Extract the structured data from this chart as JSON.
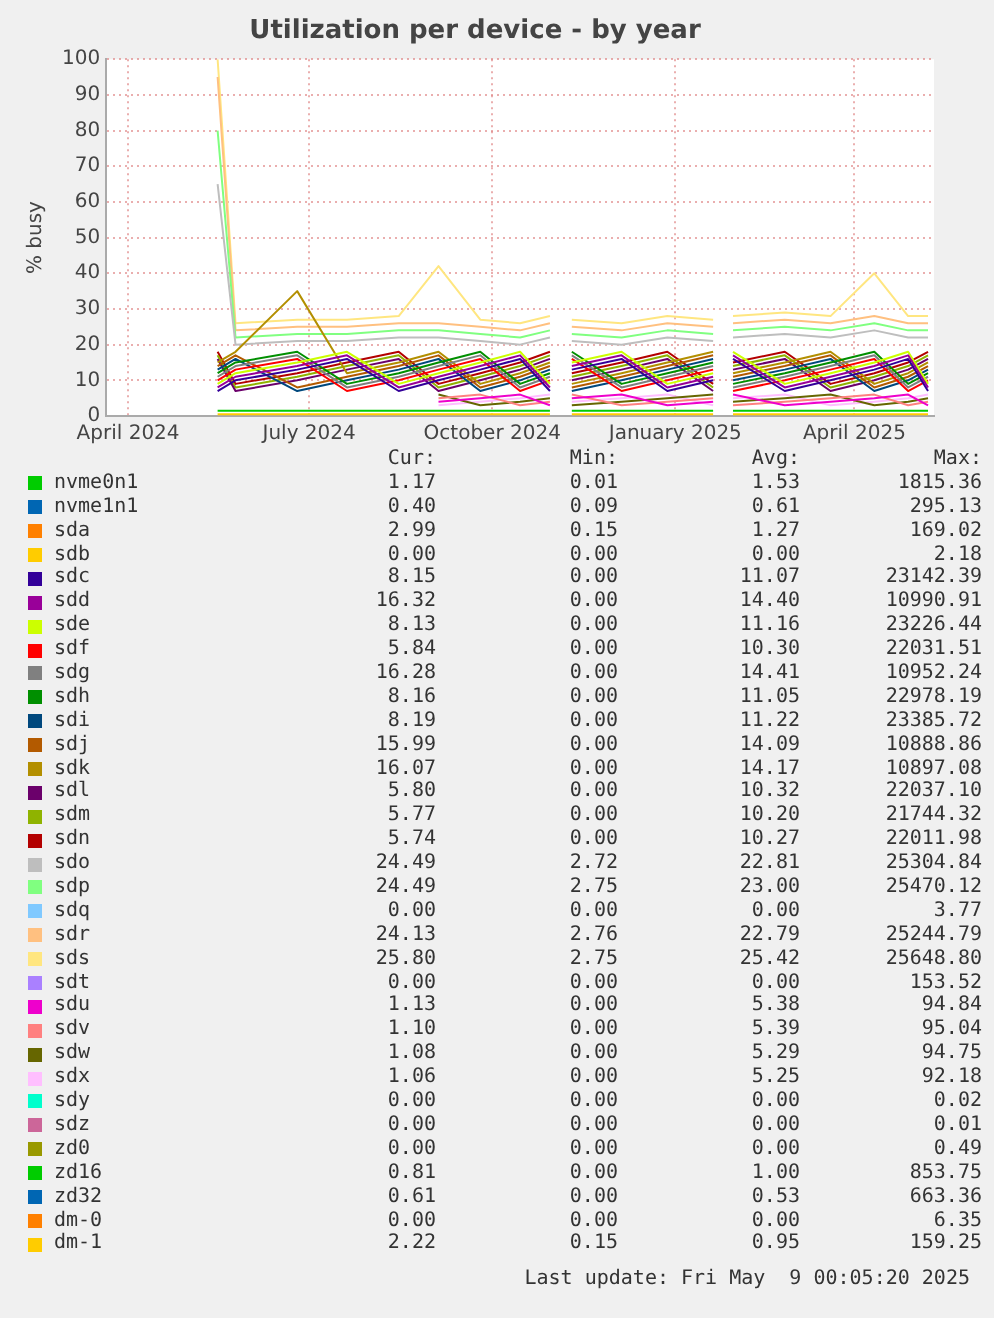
{
  "chart_data": {
    "type": "line",
    "title": "Utilization per device - by year",
    "ylabel": "% busy",
    "x": [
      "2024-05-16",
      "2024-05-25",
      "2024-06-25",
      "2024-07-20",
      "2024-08-15",
      "2024-09-04",
      "2024-09-25",
      "2024-10-15",
      "2024-10-30",
      "2024-11-05",
      "2024-11-10",
      "2024-12-05",
      "2024-12-28",
      "2025-01-20",
      "2025-01-25",
      "2025-01-30",
      "2025-02-25",
      "2025-03-20",
      "2025-04-11",
      "2025-04-28",
      "2025-05-08"
    ],
    "xlim": [
      "2024-03-21",
      "2025-05-11"
    ],
    "xticks": [
      {
        "value": "2024-04-01",
        "label": "April 2024"
      },
      {
        "value": "2024-07-01",
        "label": "July 2024"
      },
      {
        "value": "2024-10-01",
        "label": "October 2024"
      },
      {
        "value": "2025-01-01",
        "label": "January 2025"
      },
      {
        "value": "2025-04-01",
        "label": "April 2025"
      }
    ],
    "ylim": [
      0,
      100
    ],
    "yticks": [
      0,
      10,
      20,
      30,
      40,
      50,
      60,
      70,
      80,
      90,
      100
    ],
    "grid": true,
    "legend": "bottom",
    "marker": "none",
    "line_style": "solid",
    "series": [
      {
        "name": "nvme0n1",
        "color": "#00cc00",
        "values": [
          1.5,
          1.5,
          1.5,
          1.5,
          1.5,
          1.5,
          1.5,
          1.5,
          1.5,
          null,
          1.5,
          1.5,
          1.5,
          1.5,
          null,
          1.5,
          1.5,
          1.5,
          1.5,
          1.5,
          1.5
        ]
      },
      {
        "name": "nvme1n1",
        "color": "#0066b3",
        "values": [
          null,
          null,
          null,
          null,
          null,
          null,
          null,
          null,
          null,
          null,
          null,
          null,
          null,
          null,
          null,
          null,
          null,
          null,
          null,
          null,
          null
        ]
      },
      {
        "name": "sda",
        "color": "#ff8000",
        "values": [
          null,
          null,
          null,
          null,
          null,
          null,
          null,
          null,
          null,
          null,
          null,
          null,
          null,
          null,
          null,
          null,
          null,
          null,
          null,
          null,
          null
        ]
      },
      {
        "name": "sdb",
        "color": "#ffcc00",
        "values": [
          null,
          null,
          null,
          null,
          null,
          null,
          null,
          null,
          null,
          null,
          null,
          null,
          null,
          null,
          null,
          null,
          null,
          null,
          null,
          null,
          null
        ]
      },
      {
        "name": "sdc",
        "color": "#330099",
        "values": [
          7,
          10,
          13,
          16,
          7,
          10,
          13,
          16,
          7,
          null,
          13,
          16,
          7,
          10,
          null,
          16,
          7,
          10,
          13,
          16,
          7
        ]
      },
      {
        "name": "sdd",
        "color": "#990099",
        "values": [
          8,
          11,
          14,
          17,
          8,
          11,
          14,
          17,
          8,
          null,
          14,
          17,
          8,
          11,
          null,
          17,
          8,
          11,
          14,
          17,
          8
        ]
      },
      {
        "name": "sde",
        "color": "#ccff00",
        "values": [
          9,
          12,
          15,
          18,
          9,
          12,
          15,
          18,
          9,
          null,
          15,
          18,
          9,
          12,
          null,
          18,
          9,
          12,
          15,
          18,
          9
        ]
      },
      {
        "name": "sdf",
        "color": "#ff0000",
        "values": [
          10,
          13,
          16,
          7,
          10,
          13,
          16,
          7,
          10,
          null,
          16,
          7,
          10,
          13,
          null,
          7,
          10,
          13,
          16,
          7,
          10
        ]
      },
      {
        "name": "sdg",
        "color": "#808080",
        "values": [
          11,
          14,
          17,
          8,
          11,
          14,
          17,
          8,
          11,
          null,
          17,
          8,
          11,
          14,
          null,
          8,
          11,
          14,
          17,
          8,
          11
        ]
      },
      {
        "name": "sdh",
        "color": "#008f00",
        "values": [
          12,
          15,
          18,
          9,
          12,
          15,
          18,
          9,
          12,
          null,
          18,
          9,
          12,
          15,
          null,
          9,
          12,
          15,
          18,
          9,
          12
        ]
      },
      {
        "name": "sdi",
        "color": "#00487d",
        "values": [
          13,
          16,
          7,
          10,
          13,
          16,
          7,
          10,
          13,
          null,
          7,
          10,
          13,
          16,
          null,
          10,
          13,
          16,
          7,
          10,
          13
        ]
      },
      {
        "name": "sdj",
        "color": "#b35a00",
        "values": [
          14,
          17,
          8,
          11,
          14,
          17,
          8,
          11,
          14,
          null,
          8,
          11,
          14,
          17,
          null,
          11,
          14,
          17,
          8,
          11,
          14
        ]
      },
      {
        "name": "sdk",
        "color": "#b38f00",
        "values": [
          15,
          18,
          35,
          12,
          15,
          18,
          9,
          12,
          15,
          null,
          9,
          12,
          15,
          18,
          null,
          12,
          15,
          18,
          9,
          12,
          15
        ]
      },
      {
        "name": "sdl",
        "color": "#6b006b",
        "values": [
          16,
          7,
          10,
          13,
          16,
          7,
          10,
          13,
          16,
          null,
          10,
          13,
          16,
          7,
          null,
          13,
          16,
          7,
          10,
          13,
          16
        ]
      },
      {
        "name": "sdm",
        "color": "#8fb300",
        "values": [
          17,
          8,
          11,
          14,
          17,
          8,
          11,
          14,
          17,
          null,
          11,
          14,
          17,
          8,
          null,
          14,
          17,
          8,
          11,
          14,
          17
        ]
      },
      {
        "name": "sdn",
        "color": "#b30000",
        "values": [
          18,
          9,
          12,
          15,
          18,
          9,
          12,
          15,
          18,
          null,
          12,
          15,
          18,
          9,
          null,
          15,
          18,
          9,
          12,
          15,
          18
        ]
      },
      {
        "name": "sdo",
        "color": "#bebebe",
        "values": [
          65,
          20,
          21,
          21,
          22,
          22,
          21,
          20,
          22,
          null,
          21,
          20,
          22,
          21,
          null,
          22,
          23,
          22,
          24,
          22,
          22
        ]
      },
      {
        "name": "sdp",
        "color": "#80ff80",
        "values": [
          80,
          22,
          23,
          23,
          24,
          24,
          23,
          22,
          24,
          null,
          23,
          22,
          24,
          23,
          null,
          24,
          25,
          24,
          26,
          24,
          24
        ]
      },
      {
        "name": "sdq",
        "color": "#80c9ff",
        "values": [
          null,
          null,
          null,
          null,
          null,
          null,
          null,
          null,
          null,
          null,
          null,
          null,
          null,
          null,
          null,
          null,
          null,
          null,
          null,
          null,
          null
        ]
      },
      {
        "name": "sdr",
        "color": "#ffc080",
        "values": [
          95,
          24,
          25,
          25,
          26,
          26,
          25,
          24,
          26,
          null,
          25,
          24,
          26,
          25,
          null,
          26,
          27,
          26,
          28,
          26,
          26
        ]
      },
      {
        "name": "sds",
        "color": "#ffe680",
        "values": [
          100,
          26,
          27,
          27,
          28,
          42,
          27,
          26,
          28,
          null,
          27,
          26,
          28,
          27,
          null,
          28,
          29,
          28,
          40,
          28,
          28
        ]
      },
      {
        "name": "sdt",
        "color": "#aa80ff",
        "values": [
          null,
          null,
          null,
          null,
          null,
          null,
          null,
          null,
          null,
          null,
          null,
          null,
          null,
          null,
          null,
          null,
          null,
          null,
          null,
          null,
          null
        ]
      },
      {
        "name": "sdu",
        "color": "#ee00cc",
        "values": [
          null,
          null,
          null,
          null,
          null,
          4,
          5,
          6,
          3,
          null,
          5,
          6,
          3,
          4,
          null,
          6,
          3,
          4,
          5,
          6,
          3
        ]
      },
      {
        "name": "sdv",
        "color": "#ff8080",
        "values": [
          null,
          null,
          null,
          null,
          null,
          5,
          6,
          3,
          4,
          null,
          6,
          3,
          4,
          5,
          null,
          3,
          4,
          5,
          6,
          3,
          4
        ]
      },
      {
        "name": "sdw",
        "color": "#666600",
        "values": [
          null,
          null,
          null,
          null,
          null,
          6,
          3,
          4,
          5,
          null,
          3,
          4,
          5,
          6,
          null,
          4,
          5,
          6,
          3,
          4,
          5
        ]
      },
      {
        "name": "sdx",
        "color": "#ffbfff",
        "values": [
          null,
          null,
          null,
          null,
          null,
          3,
          4,
          5,
          6,
          null,
          4,
          5,
          6,
          3,
          null,
          5,
          6,
          3,
          4,
          5,
          6
        ]
      },
      {
        "name": "sdy",
        "color": "#00ffcc",
        "values": [
          null,
          null,
          null,
          null,
          null,
          null,
          null,
          null,
          null,
          null,
          null,
          null,
          null,
          null,
          null,
          null,
          null,
          null,
          null,
          null,
          null
        ]
      },
      {
        "name": "sdz",
        "color": "#cc6699",
        "values": [
          null,
          null,
          null,
          null,
          null,
          null,
          null,
          null,
          null,
          null,
          null,
          null,
          null,
          null,
          null,
          null,
          null,
          null,
          null,
          null,
          null
        ]
      },
      {
        "name": "zd0",
        "color": "#999900",
        "values": [
          null,
          null,
          null,
          null,
          null,
          null,
          null,
          null,
          null,
          null,
          null,
          null,
          null,
          null,
          null,
          null,
          null,
          null,
          null,
          null,
          null
        ]
      },
      {
        "name": "zd16",
        "color": "#00cc00",
        "values": [
          null,
          null,
          null,
          null,
          null,
          null,
          null,
          null,
          null,
          null,
          null,
          null,
          null,
          null,
          null,
          null,
          null,
          null,
          null,
          null,
          null
        ]
      },
      {
        "name": "zd32",
        "color": "#0066b3",
        "values": [
          null,
          null,
          null,
          null,
          null,
          null,
          null,
          null,
          null,
          null,
          null,
          null,
          null,
          null,
          null,
          null,
          null,
          null,
          null,
          null,
          null
        ]
      },
      {
        "name": "dm-0",
        "color": "#ff8000",
        "values": [
          null,
          null,
          null,
          null,
          null,
          null,
          null,
          null,
          null,
          null,
          null,
          null,
          null,
          null,
          null,
          null,
          null,
          null,
          null,
          null,
          null
        ]
      },
      {
        "name": "dm-1",
        "color": "#ffcc00",
        "values": [
          0.5,
          0.5,
          0.5,
          0.5,
          0.5,
          0.5,
          0.5,
          0.5,
          0.5,
          null,
          0.5,
          0.5,
          0.5,
          0.5,
          null,
          0.5,
          0.5,
          0.5,
          0.5,
          0.5,
          0.5
        ]
      }
    ],
    "annotations": [
      "Cur:",
      "Min:",
      "Avg:",
      "Max:",
      "1.17",
      "0.01",
      "1.53",
      "1815.36",
      "0.40",
      "0.09",
      "0.61",
      "295.13",
      "2.99",
      "0.15",
      "1.27",
      "169.02",
      "0.00",
      "0.00",
      "0.00",
      "2.18",
      "8.15",
      "0.00",
      "11.07",
      "23142.39",
      "16.32",
      "0.00",
      "14.40",
      "10990.91",
      "8.13",
      "0.00",
      "11.16",
      "23226.44",
      "5.84",
      "0.00",
      "10.30",
      "22031.51",
      "16.28",
      "0.00",
      "14.41",
      "10952.24",
      "8.16",
      "0.00",
      "11.05",
      "22978.19",
      "8.19",
      "0.00",
      "11.22",
      "23385.72",
      "15.99",
      "0.00",
      "14.09",
      "10888.86",
      "16.07",
      "0.00",
      "14.17",
      "10897.08",
      "5.80",
      "0.00",
      "10.32",
      "22037.10",
      "5.77",
      "0.00",
      "10.20",
      "21744.32",
      "5.74",
      "0.00",
      "10.27",
      "22011.98",
      "24.49",
      "2.72",
      "22.81",
      "25304.84",
      "24.49",
      "2.75",
      "23.00",
      "25470.12",
      "0.00",
      "0.00",
      "0.00",
      "3.77",
      "24.13",
      "2.76",
      "22.79",
      "25244.79",
      "25.80",
      "2.75",
      "25.42",
      "25648.80",
      "0.00",
      "0.00",
      "0.00",
      "153.52",
      "1.13",
      "0.00",
      "5.38",
      "94.84",
      "1.10",
      "0.00",
      "5.39",
      "95.04",
      "1.08",
      "0.00",
      "5.29",
      "94.75",
      "1.06",
      "0.00",
      "5.25",
      "92.18",
      "0.00",
      "0.00",
      "0.00",
      "0.02",
      "0.00",
      "0.00",
      "0.00",
      "0.01",
      "0.00",
      "0.00",
      "0.00",
      "0.49",
      "0.81",
      "0.00",
      "1.00",
      "853.75",
      "0.61",
      "0.00",
      "0.53",
      "663.36",
      "0.00",
      "0.00",
      "0.00",
      "6.35",
      "2.22",
      "0.15",
      "0.95",
      "159.25",
      "Last update: Fri May  9 00:05:20 2025"
    ]
  }
}
